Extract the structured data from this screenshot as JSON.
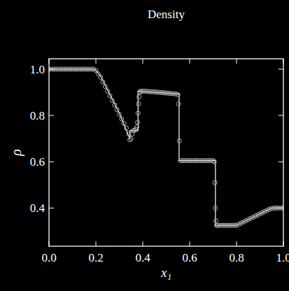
{
  "chart_data": {
    "type": "line",
    "title": "Density",
    "x_label": "x₁",
    "y_label": "ρ",
    "xlim": [
      0,
      1
    ],
    "ylim": [
      0.235,
      1.045
    ],
    "xticks": [
      {
        "value": 0,
        "label": "0.0"
      },
      {
        "value": 0.2,
        "label": "0.2"
      },
      {
        "value": 0.4,
        "label": "0.4"
      },
      {
        "value": 0.6,
        "label": "0.6"
      },
      {
        "value": 0.8,
        "label": "0.8"
      },
      {
        "value": 1,
        "label": "1.0"
      }
    ],
    "yticks": [
      {
        "value": 0.4,
        "label": "0.4"
      },
      {
        "value": 0.6,
        "label": "0.6"
      },
      {
        "value": 0.8,
        "label": "0.8"
      },
      {
        "value": 1,
        "label": "1.0"
      }
    ],
    "grid": false,
    "series": [
      {
        "type": "line",
        "color": "#ffffff",
        "line_style": "solid",
        "x": [
          0,
          0.19,
          0.2,
          0.22,
          0.25,
          0.3,
          0.345,
          0.345,
          0.38,
          0.38,
          0.555,
          0.555,
          0.71,
          0.71,
          0.8,
          0.95,
          1
        ],
        "values": [
          1,
          1,
          0.995,
          0.97,
          0.91,
          0.81,
          0.7,
          0.735,
          0.735,
          0.905,
          0.893,
          0.605,
          0.605,
          0.325,
          0.325,
          0.4,
          0.4
        ]
      },
      {
        "type": "scatter",
        "color": "#b4b4b4",
        "marker": "circle",
        "x": [
          0,
          0.01,
          0.02,
          0.03,
          0.04,
          0.05,
          0.06,
          0.07,
          0.08,
          0.09,
          0.1,
          0.11,
          0.12,
          0.13,
          0.14,
          0.15,
          0.16,
          0.17,
          0.18,
          0.19,
          0.2,
          0.21,
          0.22,
          0.23,
          0.24,
          0.25,
          0.26,
          0.27,
          0.28,
          0.29,
          0.3,
          0.31,
          0.32,
          0.33,
          0.34,
          0.345,
          0.35,
          0.355,
          0.36,
          0.365,
          0.37,
          0.375,
          0.378,
          0.38,
          0.382,
          0.384,
          0.388,
          0.39,
          0.4,
          0.41,
          0.42,
          0.43,
          0.44,
          0.45,
          0.46,
          0.47,
          0.48,
          0.49,
          0.5,
          0.51,
          0.52,
          0.53,
          0.54,
          0.55,
          0.553,
          0.556,
          0.56,
          0.57,
          0.58,
          0.59,
          0.6,
          0.61,
          0.62,
          0.63,
          0.64,
          0.65,
          0.66,
          0.67,
          0.68,
          0.69,
          0.7,
          0.705,
          0.708,
          0.71,
          0.712,
          0.715,
          0.72,
          0.73,
          0.74,
          0.75,
          0.76,
          0.77,
          0.78,
          0.79,
          0.8,
          0.81,
          0.82,
          0.83,
          0.84,
          0.85,
          0.86,
          0.87,
          0.88,
          0.89,
          0.9,
          0.91,
          0.92,
          0.93,
          0.94,
          0.95,
          0.96,
          0.97,
          0.98,
          0.99,
          1
        ],
        "values": [
          1,
          1,
          1,
          1,
          1,
          1,
          1,
          1,
          1,
          1,
          1,
          1,
          1,
          1,
          1,
          1,
          1,
          1,
          1,
          1,
          0.995,
          0.98,
          0.965,
          0.945,
          0.925,
          0.905,
          0.885,
          0.865,
          0.845,
          0.825,
          0.805,
          0.785,
          0.765,
          0.745,
          0.72,
          0.695,
          0.7,
          0.72,
          0.735,
          0.735,
          0.74,
          0.75,
          0.77,
          0.81,
          0.85,
          0.88,
          0.9,
          0.905,
          0.905,
          0.905,
          0.904,
          0.903,
          0.902,
          0.902,
          0.901,
          0.9,
          0.899,
          0.898,
          0.897,
          0.896,
          0.895,
          0.894,
          0.893,
          0.89,
          0.85,
          0.69,
          0.605,
          0.605,
          0.605,
          0.605,
          0.605,
          0.605,
          0.605,
          0.605,
          0.605,
          0.605,
          0.605,
          0.605,
          0.605,
          0.605,
          0.605,
          0.6,
          0.51,
          0.4,
          0.345,
          0.325,
          0.325,
          0.325,
          0.325,
          0.325,
          0.325,
          0.325,
          0.325,
          0.325,
          0.325,
          0.33,
          0.335,
          0.34,
          0.345,
          0.35,
          0.355,
          0.36,
          0.365,
          0.37,
          0.375,
          0.38,
          0.385,
          0.39,
          0.395,
          0.398,
          0.4,
          0.4,
          0.4,
          0.4,
          0.4
        ]
      }
    ]
  }
}
